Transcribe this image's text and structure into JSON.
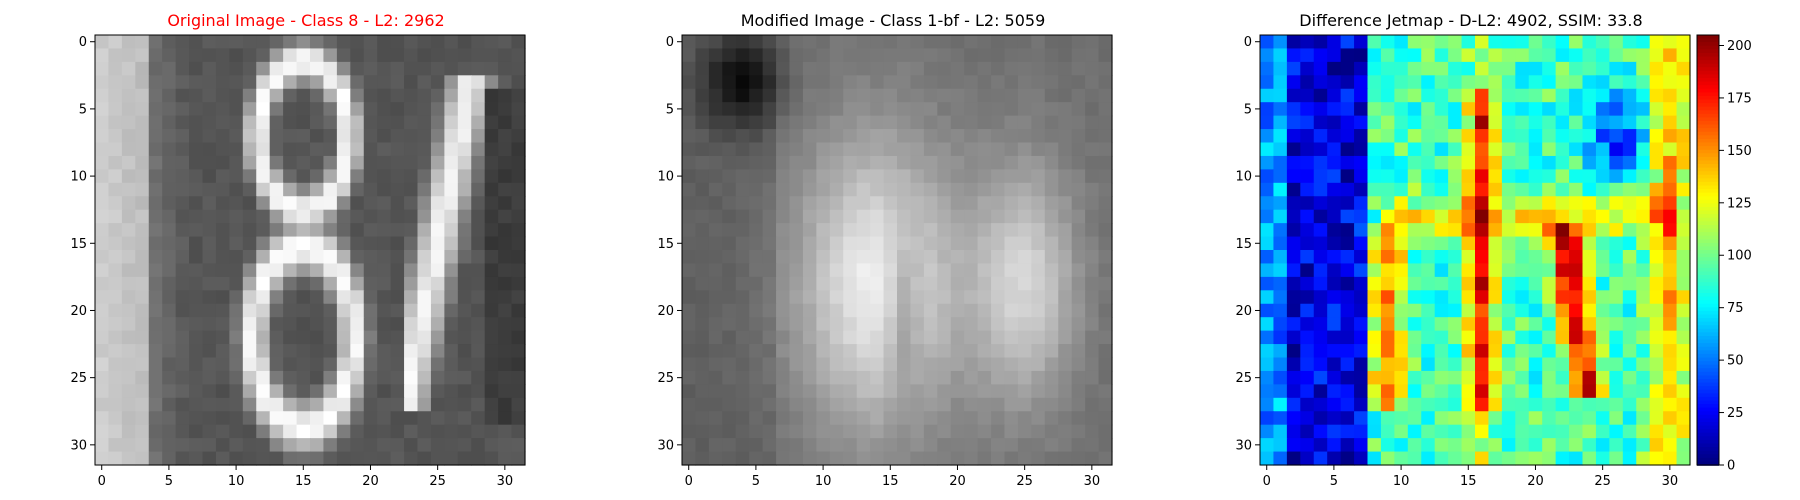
{
  "chart_data": [
    {
      "type": "heatmap",
      "title": "Original Image - Class 8 - L2: 2962",
      "title_color": "#ff0000",
      "colormap": "gray",
      "xlim": [
        0,
        31
      ],
      "ylim": [
        31,
        0
      ],
      "x_ticks": [
        "0",
        "5",
        "10",
        "15",
        "20",
        "25",
        "30"
      ],
      "y_ticks": [
        "0",
        "5",
        "10",
        "15",
        "20",
        "25",
        "30"
      ]
    },
    {
      "type": "heatmap",
      "title": "Modified Image - Class 1-bf - L2: 5059",
      "title_color": "#000000",
      "colormap": "gray",
      "xlim": [
        0,
        31
      ],
      "ylim": [
        31,
        0
      ],
      "x_ticks": [
        "0",
        "5",
        "10",
        "15",
        "20",
        "25",
        "30"
      ],
      "y_ticks": [
        "0",
        "5",
        "10",
        "15",
        "20",
        "25",
        "30"
      ]
    },
    {
      "type": "heatmap",
      "title": "Difference Jetmap - D-L2: 4902, SSIM: 33.8",
      "title_color": "#000000",
      "colormap": "jet",
      "xlim": [
        0,
        31
      ],
      "ylim": [
        31,
        0
      ],
      "x_ticks": [
        "0",
        "5",
        "10",
        "15",
        "20",
        "25",
        "30"
      ],
      "y_ticks": [
        "0",
        "5",
        "10",
        "15",
        "20",
        "25",
        "30"
      ],
      "colorbar": {
        "range": [
          0,
          205
        ],
        "ticks": [
          "0",
          "25",
          "50",
          "75",
          "100",
          "125",
          "150",
          "175",
          "200"
        ]
      }
    }
  ]
}
